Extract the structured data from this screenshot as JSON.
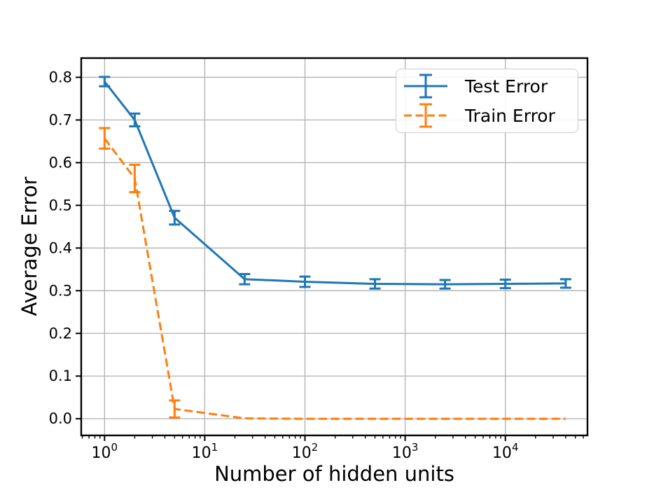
{
  "chart_data": {
    "type": "line",
    "title": "",
    "xlabel": "Number of hidden units",
    "ylabel": "Average Error",
    "xscale": "log",
    "xlim": [
      0.585,
      66000
    ],
    "ylim": [
      -0.039,
      0.845
    ],
    "grid": true,
    "grid_color": "#b0b0b0",
    "spine_color": "#000000",
    "background_color": "#ffffff",
    "legend_position": "upper right",
    "xticks": {
      "values": [
        1,
        10,
        100,
        1000,
        10000
      ],
      "base": "10",
      "exponents": [
        "0",
        "1",
        "2",
        "3",
        "4"
      ]
    },
    "yticks": {
      "values": [
        0.0,
        0.1,
        0.2,
        0.3,
        0.4,
        0.5,
        0.6,
        0.7,
        0.8
      ],
      "labels": [
        "0.0",
        "0.1",
        "0.2",
        "0.3",
        "0.4",
        "0.5",
        "0.6",
        "0.7",
        "0.8"
      ]
    },
    "series": [
      {
        "name": "Test Error",
        "color": "#1f77b4",
        "style": "solid",
        "x": [
          1,
          2,
          5,
          25,
          100,
          500,
          2500,
          10000,
          40000
        ],
        "y": [
          0.79,
          0.7,
          0.471,
          0.327,
          0.321,
          0.316,
          0.315,
          0.316,
          0.317
        ],
        "yerr": [
          0.011,
          0.015,
          0.016,
          0.012,
          0.012,
          0.011,
          0.01,
          0.01,
          0.01
        ]
      },
      {
        "name": "Train Error",
        "color": "#ff7f0e",
        "style": "dashed",
        "x": [
          1,
          2,
          5,
          25,
          100,
          500,
          2500,
          10000,
          40000
        ],
        "y": [
          0.657,
          0.563,
          0.023,
          0.001,
          0.0,
          0.0,
          0.0,
          0.0,
          0.0
        ],
        "yerr": [
          0.024,
          0.032,
          0.02,
          0.001,
          0.0,
          0.0,
          0.0,
          0.0,
          0.0
        ]
      }
    ]
  }
}
